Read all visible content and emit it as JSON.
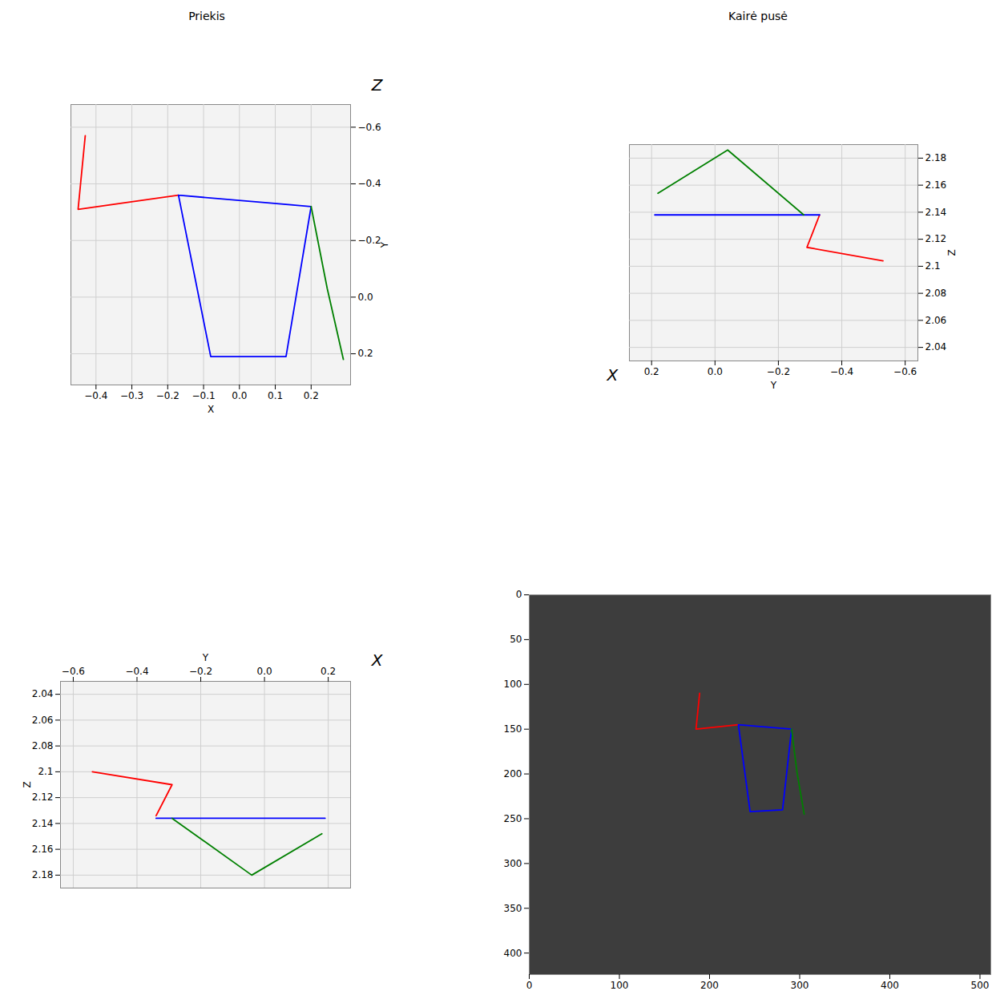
{
  "chart_data": [
    {
      "type": "line",
      "title": "Priekis",
      "xlabel": "X",
      "ylabel": "Y",
      "zlabel": "Z",
      "xlim": [
        -0.47,
        0.31
      ],
      "ylim": [
        0.31,
        -0.68
      ],
      "xticks": [
        -0.4,
        -0.3,
        -0.2,
        -0.1,
        {
          "value": 0,
          "label": "0.0"
        },
        0.1,
        0.2
      ],
      "yticks": [
        -0.6,
        -0.4,
        -0.2,
        {
          "value": 0,
          "label": "0.0"
        },
        0.2
      ],
      "grid": true,
      "series": [
        {
          "color": "#ff0000",
          "x": [
            -0.43,
            -0.45,
            -0.17
          ],
          "y": [
            -0.57,
            -0.31,
            -0.36
          ]
        },
        {
          "color": "#0000ff",
          "x": [
            -0.17,
            0.2,
            0.13,
            -0.08,
            -0.17
          ],
          "y": [
            -0.36,
            -0.32,
            0.21,
            0.21,
            -0.36
          ]
        },
        {
          "color": "#008000",
          "x": [
            0.2,
            0.245,
            0.29
          ],
          "y": [
            -0.32,
            -0.03,
            0.22
          ]
        }
      ]
    },
    {
      "type": "line",
      "title": "Kairė pusė",
      "xlabel": "Y",
      "ylabel": "Z",
      "zlabel": "X",
      "xlim": [
        0.27,
        -0.64
      ],
      "ylim": [
        2.03,
        2.19
      ],
      "xticks": [
        0.2,
        {
          "value": 0,
          "label": "0.0"
        },
        -0.2,
        -0.4,
        -0.6
      ],
      "yticks": [
        2.04,
        2.06,
        2.08,
        2.1,
        2.12,
        2.14,
        2.16,
        2.18
      ],
      "grid": true,
      "series": [
        {
          "color": "#ff0000",
          "x": [
            -0.33,
            -0.29,
            -0.53
          ],
          "y": [
            2.138,
            2.114,
            2.104
          ]
        },
        {
          "color": "#0000ff",
          "x": [
            0.19,
            -0.33
          ],
          "y": [
            2.138,
            2.138
          ]
        },
        {
          "color": "#008000",
          "x": [
            -0.28,
            -0.04,
            0.18
          ],
          "y": [
            2.138,
            2.186,
            2.154
          ]
        }
      ]
    },
    {
      "type": "line",
      "xlabel": "Y",
      "ylabel": "Z",
      "zlabel": "X",
      "xlim": [
        -0.64,
        0.27
      ],
      "ylim": [
        2.19,
        2.03
      ],
      "xticks": [
        -0.6,
        -0.4,
        -0.2,
        {
          "value": 0,
          "label": "0.0"
        },
        0.2
      ],
      "yticks": [
        2.04,
        2.06,
        2.08,
        2.1,
        2.12,
        2.14,
        2.16,
        2.18
      ],
      "grid": true,
      "series": [
        {
          "color": "#ff0000",
          "x": [
            -0.54,
            -0.29,
            -0.34
          ],
          "y": [
            2.1,
            2.11,
            2.134
          ]
        },
        {
          "color": "#0000ff",
          "x": [
            -0.34,
            0.19
          ],
          "y": [
            2.136,
            2.136
          ]
        },
        {
          "color": "#008000",
          "x": [
            -0.29,
            -0.04,
            0.18
          ],
          "y": [
            2.136,
            2.18,
            2.148
          ]
        }
      ]
    },
    {
      "type": "line",
      "xlim": [
        0,
        512
      ],
      "ylim": [
        424,
        0
      ],
      "xticks": [
        0,
        100,
        200,
        300,
        400,
        500
      ],
      "yticks": [
        0,
        50,
        100,
        150,
        200,
        250,
        300,
        350,
        400
      ],
      "grid": false,
      "series": [
        {
          "color": "#ff0000",
          "x": [
            189,
            185,
            232
          ],
          "y": [
            110,
            150,
            145
          ]
        },
        {
          "color": "#0000ff",
          "x": [
            232,
            291,
            281,
            245,
            232
          ],
          "y": [
            145,
            150,
            240,
            242,
            145
          ]
        },
        {
          "color": "#008000",
          "x": [
            291,
            297,
            305
          ],
          "y": [
            150,
            198,
            245
          ]
        }
      ]
    }
  ]
}
